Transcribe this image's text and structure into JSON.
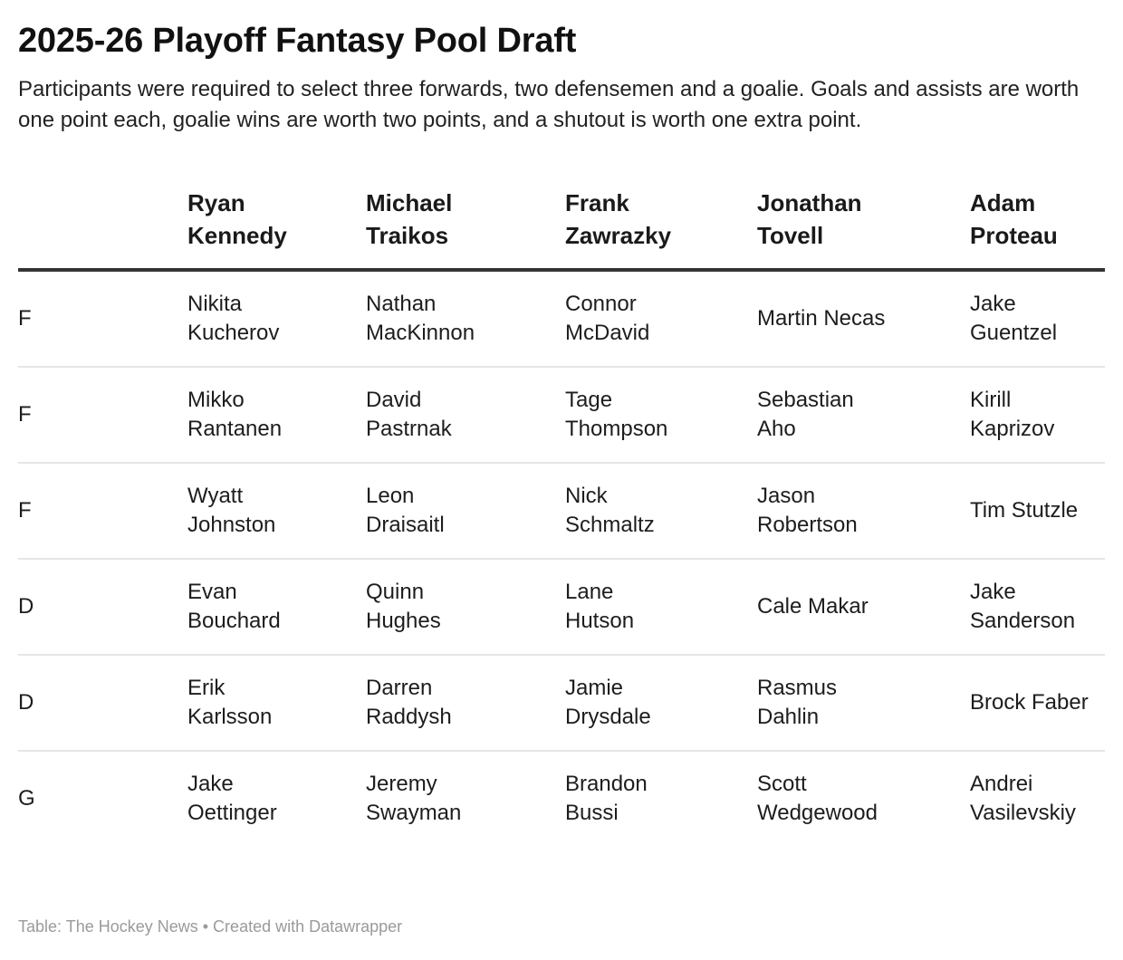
{
  "header": {
    "title": "2025-26 Playoff Fantasy Pool Draft",
    "description": "Participants were required to select three forwards, two defensemen and a goalie. Goals and assists are worth one point each, goalie wins are worth two points, and a shutout is worth one extra point."
  },
  "table": {
    "columns": [
      {
        "line1": "",
        "line2": ""
      },
      {
        "line1": "Ryan",
        "line2": "Kennedy"
      },
      {
        "line1": "Michael",
        "line2": "Traikos"
      },
      {
        "line1": "Frank",
        "line2": "Zawrazky"
      },
      {
        "line1": "Jonathan",
        "line2": "Tovell"
      },
      {
        "line1": "Adam",
        "line2": "Proteau"
      }
    ],
    "rows": [
      {
        "position": "F",
        "picks": [
          [
            "Nikita",
            "Kucherov"
          ],
          [
            "Nathan",
            "MacKinnon"
          ],
          [
            "Connor",
            "McDavid"
          ],
          [
            "Martin Necas",
            ""
          ],
          [
            "Jake",
            "Guentzel"
          ]
        ]
      },
      {
        "position": "F",
        "picks": [
          [
            "Mikko",
            "Rantanen"
          ],
          [
            "David",
            "Pastrnak"
          ],
          [
            "Tage",
            "Thompson"
          ],
          [
            "Sebastian",
            "Aho"
          ],
          [
            "Kirill",
            "Kaprizov"
          ]
        ]
      },
      {
        "position": "F",
        "picks": [
          [
            "Wyatt",
            "Johnston"
          ],
          [
            "Leon",
            "Draisaitl"
          ],
          [
            "Nick",
            "Schmaltz"
          ],
          [
            "Jason",
            "Robertson"
          ],
          [
            "Tim Stutzle",
            ""
          ]
        ]
      },
      {
        "position": "D",
        "picks": [
          [
            "Evan",
            "Bouchard"
          ],
          [
            "Quinn",
            "Hughes"
          ],
          [
            "Lane",
            "Hutson"
          ],
          [
            "Cale Makar",
            ""
          ],
          [
            "Jake",
            "Sanderson"
          ]
        ]
      },
      {
        "position": "D",
        "picks": [
          [
            "Erik",
            "Karlsson"
          ],
          [
            "Darren",
            "Raddysh"
          ],
          [
            "Jamie",
            "Drysdale"
          ],
          [
            "Rasmus",
            "Dahlin"
          ],
          [
            "Brock Faber",
            ""
          ]
        ]
      },
      {
        "position": "G",
        "picks": [
          [
            "Jake",
            "Oettinger"
          ],
          [
            "Jeremy",
            "Swayman"
          ],
          [
            "Brandon",
            "Bussi"
          ],
          [
            "Scott",
            "Wedgewood"
          ],
          [
            "Andrei",
            "Vasilevskiy"
          ]
        ]
      }
    ]
  },
  "footer": {
    "text": "Table: The Hockey News • Created with Datawrapper"
  },
  "colors": {
    "header_rule": "#333333",
    "row_rule": "#e6e6e6",
    "footer_text": "#9a9a9a"
  }
}
